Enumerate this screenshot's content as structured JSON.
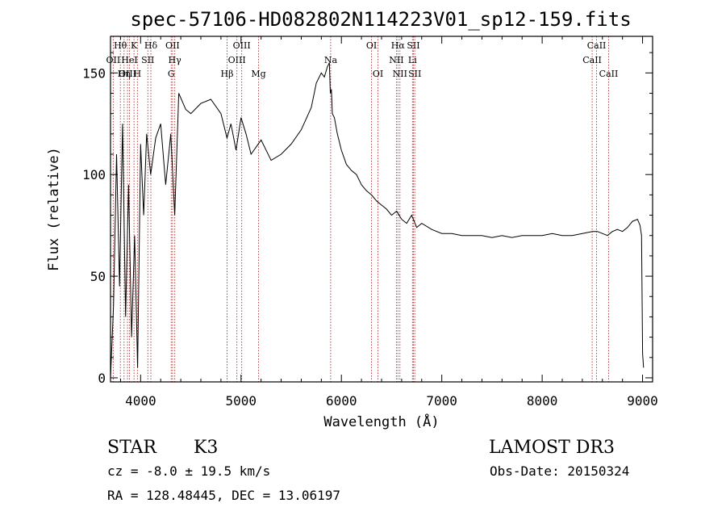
{
  "chart_data": {
    "type": "line",
    "title": "spec-57106-HD082802N114223V01_sp12-159.fits",
    "xlabel": "Wavelength (Å)",
    "ylabel": "Flux (relative)",
    "xlim": [
      3700,
      9100
    ],
    "ylim": [
      -2,
      168
    ],
    "x_ticks": [
      4000,
      5000,
      6000,
      7000,
      8000,
      9000
    ],
    "y_ticks": [
      0,
      50,
      100,
      150
    ],
    "series": [
      {
        "name": "spectrum",
        "x": [
          3700,
          3730,
          3760,
          3790,
          3820,
          3850,
          3880,
          3910,
          3940,
          3970,
          4000,
          4030,
          4060,
          4100,
          4150,
          4200,
          4250,
          4300,
          4340,
          4380,
          4450,
          4500,
          4600,
          4700,
          4800,
          4860,
          4900,
          4950,
          5000,
          5050,
          5100,
          5200,
          5300,
          5400,
          5500,
          5600,
          5700,
          5750,
          5800,
          5830,
          5860,
          5880,
          5890,
          5900,
          5910,
          5930,
          5960,
          6000,
          6050,
          6100,
          6150,
          6200,
          6250,
          6300,
          6350,
          6400,
          6450,
          6500,
          6550,
          6600,
          6650,
          6700,
          6750,
          6800,
          6900,
          7000,
          7100,
          7200,
          7300,
          7400,
          7500,
          7600,
          7700,
          7800,
          7900,
          8000,
          8100,
          8200,
          8300,
          8400,
          8500,
          8550,
          8600,
          8650,
          8700,
          8750,
          8800,
          8850,
          8900,
          8950,
          8975,
          8990,
          9000,
          9010
        ],
        "y": [
          0,
          35,
          110,
          45,
          125,
          30,
          95,
          20,
          70,
          5,
          115,
          80,
          120,
          100,
          118,
          125,
          95,
          120,
          80,
          140,
          132,
          130,
          135,
          137,
          130,
          118,
          125,
          112,
          128,
          120,
          110,
          117,
          107,
          110,
          115,
          122,
          133,
          145,
          150,
          148,
          153,
          155,
          140,
          142,
          130,
          128,
          120,
          112,
          105,
          102,
          100,
          95,
          92,
          90,
          87,
          85,
          83,
          80,
          82,
          78,
          76,
          80,
          74,
          76,
          73,
          71,
          71,
          70,
          70,
          70,
          69,
          70,
          69,
          70,
          70,
          70,
          71,
          70,
          70,
          71,
          72,
          72,
          71,
          70,
          72,
          73,
          72,
          74,
          77,
          78,
          75,
          70,
          12,
          5
        ]
      }
    ],
    "lines": [
      {
        "label": "Hθ",
        "x": 3798,
        "row": 0,
        "style": "dotted"
      },
      {
        "label": "K",
        "x": 3934,
        "row": 0,
        "style": "dotted"
      },
      {
        "label": "Hδ",
        "x": 4102,
        "row": 0,
        "style": "dotted"
      },
      {
        "label": "OII",
        "x": 4318,
        "row": 0,
        "style": "dotted"
      },
      {
        "label": "OIII",
        "x": 5007,
        "row": 0,
        "style": "dotted"
      },
      {
        "label": "OI",
        "x": 6300,
        "row": 0,
        "style": "dotted"
      },
      {
        "label": "Hα",
        "x": 6563,
        "row": 0,
        "style": "dotted"
      },
      {
        "label": "SII",
        "x": 6717,
        "row": 0,
        "style": "dotted"
      },
      {
        "label": "CaII",
        "x": 8542,
        "row": 0,
        "style": "dotted"
      },
      {
        "label": "OII",
        "x": 3727,
        "row": 1,
        "style": "dotted"
      },
      {
        "label": "HeI",
        "x": 3889,
        "row": 1,
        "style": "dotted"
      },
      {
        "label": "SII",
        "x": 4072,
        "row": 1,
        "style": "dotted"
      },
      {
        "label": "Hγ",
        "x": 4340,
        "row": 1,
        "style": "dotted"
      },
      {
        "label": "OIII",
        "x": 4959,
        "row": 1,
        "style": "dotted"
      },
      {
        "label": "Na",
        "x": 5893,
        "row": 1,
        "style": "dotted"
      },
      {
        "label": "NII",
        "x": 6548,
        "row": 1,
        "style": "dotted"
      },
      {
        "label": "Li",
        "x": 6708,
        "row": 1,
        "style": "dotted"
      },
      {
        "label": "CaII",
        "x": 8498,
        "row": 1,
        "style": "dotted"
      },
      {
        "label": "OIII",
        "x": 3869,
        "row": 2,
        "style": "dotted"
      },
      {
        "label": "Hη",
        "x": 3835,
        "row": 2,
        "style": "dotted"
      },
      {
        "label": "H",
        "x": 3968,
        "row": 2,
        "style": "dotted"
      },
      {
        "label": "G",
        "x": 4305,
        "row": 2,
        "style": "dotted"
      },
      {
        "label": "Hβ",
        "x": 4861,
        "row": 2,
        "style": "dotted"
      },
      {
        "label": "Mg",
        "x": 5175,
        "row": 2,
        "style": "dotted"
      },
      {
        "label": "OI",
        "x": 6364,
        "row": 2,
        "style": "dotted"
      },
      {
        "label": "NII",
        "x": 6583,
        "row": 2,
        "style": "dotted"
      },
      {
        "label": "SII",
        "x": 6731,
        "row": 2,
        "style": "dotted"
      },
      {
        "label": "CaII",
        "x": 8662,
        "row": 2,
        "style": "dotted"
      }
    ],
    "line_color": "#b03030",
    "trace_color": "#000000"
  },
  "info": {
    "object_class": "STAR",
    "subclass": "K3",
    "survey": "LAMOST DR3",
    "cz": "cz = -8.0 ± 19.5 km/s",
    "obs_date": "Obs-Date: 20150324",
    "coords": "RA = 128.48445, DEC =  13.06197"
  }
}
